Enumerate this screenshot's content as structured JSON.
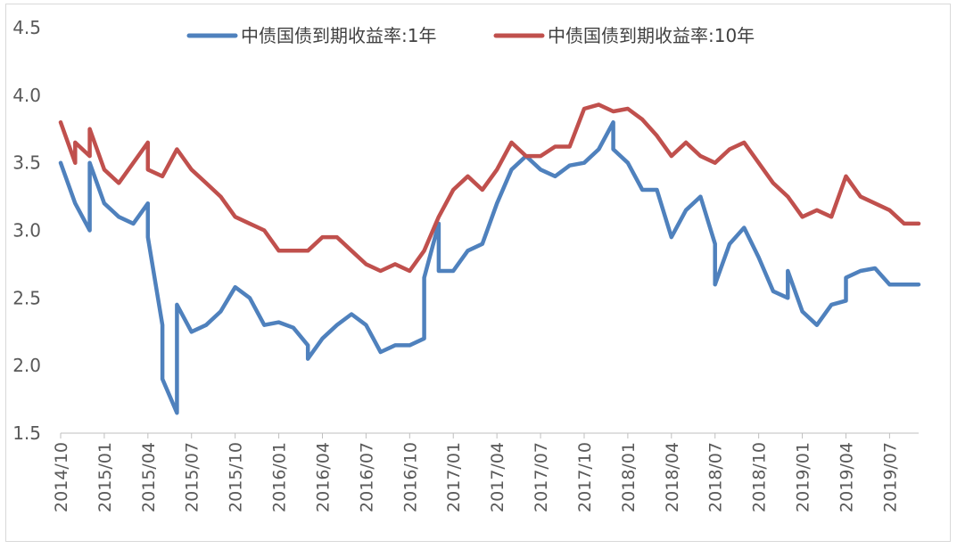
{
  "chart_data": {
    "type": "line",
    "title": "",
    "xlabel": "",
    "ylabel": "",
    "ylim": [
      1.5,
      4.5
    ],
    "yticks": [
      "1.5",
      "2.0",
      "2.5",
      "3.0",
      "3.5",
      "4.0",
      "4.5"
    ],
    "x_range": [
      "2014/10",
      "2019/09"
    ],
    "xticks": [
      "2014/10",
      "2015/01",
      "2015/04",
      "2015/07",
      "2015/10",
      "2016/01",
      "2016/04",
      "2016/07",
      "2016/10",
      "2017/01",
      "2017/04",
      "2017/07",
      "2017/10",
      "2018/01",
      "2018/04",
      "2018/07",
      "2018/10",
      "2019/01",
      "2019/04",
      "2019/07"
    ],
    "grid": false,
    "legend_position": "top",
    "series": [
      {
        "name": "中债国债到期收益率:1年",
        "color": "#4f81bd",
        "points": [
          [
            "2014/10",
            3.5
          ],
          [
            "2014/11",
            3.2
          ],
          [
            "2014/12",
            3.0
          ],
          [
            "2014/12",
            3.5
          ],
          [
            "2015/01",
            3.2
          ],
          [
            "2015/02",
            3.1
          ],
          [
            "2015/03",
            3.05
          ],
          [
            "2015/04",
            3.2
          ],
          [
            "2015/04",
            2.95
          ],
          [
            "2015/05",
            2.3
          ],
          [
            "2015/05",
            1.9
          ],
          [
            "2015/06",
            1.65
          ],
          [
            "2015/06",
            1.75
          ],
          [
            "2015/06",
            2.45
          ],
          [
            "2015/07",
            2.25
          ],
          [
            "2015/08",
            2.3
          ],
          [
            "2015/09",
            2.4
          ],
          [
            "2015/10",
            2.58
          ],
          [
            "2015/11",
            2.5
          ],
          [
            "2015/12",
            2.3
          ],
          [
            "2016/01",
            2.32
          ],
          [
            "2016/02",
            2.28
          ],
          [
            "2016/03",
            2.15
          ],
          [
            "2016/03",
            2.05
          ],
          [
            "2016/04",
            2.2
          ],
          [
            "2016/05",
            2.3
          ],
          [
            "2016/06",
            2.38
          ],
          [
            "2016/07",
            2.3
          ],
          [
            "2016/08",
            2.1
          ],
          [
            "2016/09",
            2.15
          ],
          [
            "2016/10",
            2.15
          ],
          [
            "2016/11",
            2.2
          ],
          [
            "2016/11",
            2.65
          ],
          [
            "2016/12",
            3.05
          ],
          [
            "2016/12",
            2.7
          ],
          [
            "2017/01",
            2.7
          ],
          [
            "2017/02",
            2.85
          ],
          [
            "2017/03",
            2.9
          ],
          [
            "2017/04",
            3.2
          ],
          [
            "2017/05",
            3.45
          ],
          [
            "2017/06",
            3.55
          ],
          [
            "2017/07",
            3.45
          ],
          [
            "2017/08",
            3.4
          ],
          [
            "2017/09",
            3.48
          ],
          [
            "2017/10",
            3.5
          ],
          [
            "2017/11",
            3.6
          ],
          [
            "2017/12",
            3.8
          ],
          [
            "2017/12",
            3.6
          ],
          [
            "2018/01",
            3.5
          ],
          [
            "2018/02",
            3.3
          ],
          [
            "2018/03",
            3.3
          ],
          [
            "2018/04",
            2.95
          ],
          [
            "2018/05",
            3.15
          ],
          [
            "2018/06",
            3.25
          ],
          [
            "2018/07",
            2.9
          ],
          [
            "2018/07",
            2.6
          ],
          [
            "2018/08",
            2.9
          ],
          [
            "2018/09",
            3.02
          ],
          [
            "2018/10",
            2.8
          ],
          [
            "2018/11",
            2.55
          ],
          [
            "2018/12",
            2.5
          ],
          [
            "2018/12",
            2.7
          ],
          [
            "2019/01",
            2.4
          ],
          [
            "2019/02",
            2.3
          ],
          [
            "2019/03",
            2.45
          ],
          [
            "2019/04",
            2.48
          ],
          [
            "2019/04",
            2.65
          ],
          [
            "2019/05",
            2.7
          ],
          [
            "2019/06",
            2.72
          ],
          [
            "2019/07",
            2.6
          ],
          [
            "2019/08",
            2.6
          ],
          [
            "2019/09",
            2.6
          ]
        ]
      },
      {
        "name": "中债国债到期收益率:10年",
        "color": "#c0504d",
        "points": [
          [
            "2014/10",
            3.8
          ],
          [
            "2014/11",
            3.5
          ],
          [
            "2014/11",
            3.65
          ],
          [
            "2014/12",
            3.55
          ],
          [
            "2014/12",
            3.75
          ],
          [
            "2015/01",
            3.45
          ],
          [
            "2015/02",
            3.35
          ],
          [
            "2015/03",
            3.5
          ],
          [
            "2015/04",
            3.65
          ],
          [
            "2015/04",
            3.45
          ],
          [
            "2015/05",
            3.4
          ],
          [
            "2015/06",
            3.6
          ],
          [
            "2015/07",
            3.45
          ],
          [
            "2015/08",
            3.35
          ],
          [
            "2015/09",
            3.25
          ],
          [
            "2015/10",
            3.1
          ],
          [
            "2015/11",
            3.05
          ],
          [
            "2015/12",
            3.0
          ],
          [
            "2016/01",
            2.85
          ],
          [
            "2016/02",
            2.85
          ],
          [
            "2016/03",
            2.85
          ],
          [
            "2016/04",
            2.95
          ],
          [
            "2016/05",
            2.95
          ],
          [
            "2016/06",
            2.85
          ],
          [
            "2016/07",
            2.75
          ],
          [
            "2016/08",
            2.7
          ],
          [
            "2016/09",
            2.75
          ],
          [
            "2016/10",
            2.7
          ],
          [
            "2016/11",
            2.85
          ],
          [
            "2016/12",
            3.1
          ],
          [
            "2017/01",
            3.3
          ],
          [
            "2017/02",
            3.4
          ],
          [
            "2017/03",
            3.3
          ],
          [
            "2017/04",
            3.45
          ],
          [
            "2017/05",
            3.65
          ],
          [
            "2017/06",
            3.55
          ],
          [
            "2017/07",
            3.55
          ],
          [
            "2017/08",
            3.62
          ],
          [
            "2017/09",
            3.62
          ],
          [
            "2017/10",
            3.9
          ],
          [
            "2017/11",
            3.93
          ],
          [
            "2017/12",
            3.88
          ],
          [
            "2018/01",
            3.9
          ],
          [
            "2018/02",
            3.82
          ],
          [
            "2018/03",
            3.7
          ],
          [
            "2018/04",
            3.55
          ],
          [
            "2018/05",
            3.65
          ],
          [
            "2018/06",
            3.55
          ],
          [
            "2018/07",
            3.5
          ],
          [
            "2018/08",
            3.6
          ],
          [
            "2018/09",
            3.65
          ],
          [
            "2018/10",
            3.5
          ],
          [
            "2018/11",
            3.35
          ],
          [
            "2018/12",
            3.25
          ],
          [
            "2019/01",
            3.1
          ],
          [
            "2019/02",
            3.15
          ],
          [
            "2019/03",
            3.1
          ],
          [
            "2019/04",
            3.4
          ],
          [
            "2019/05",
            3.25
          ],
          [
            "2019/06",
            3.2
          ],
          [
            "2019/07",
            3.15
          ],
          [
            "2019/08",
            3.05
          ],
          [
            "2019/09",
            3.05
          ]
        ]
      }
    ]
  }
}
